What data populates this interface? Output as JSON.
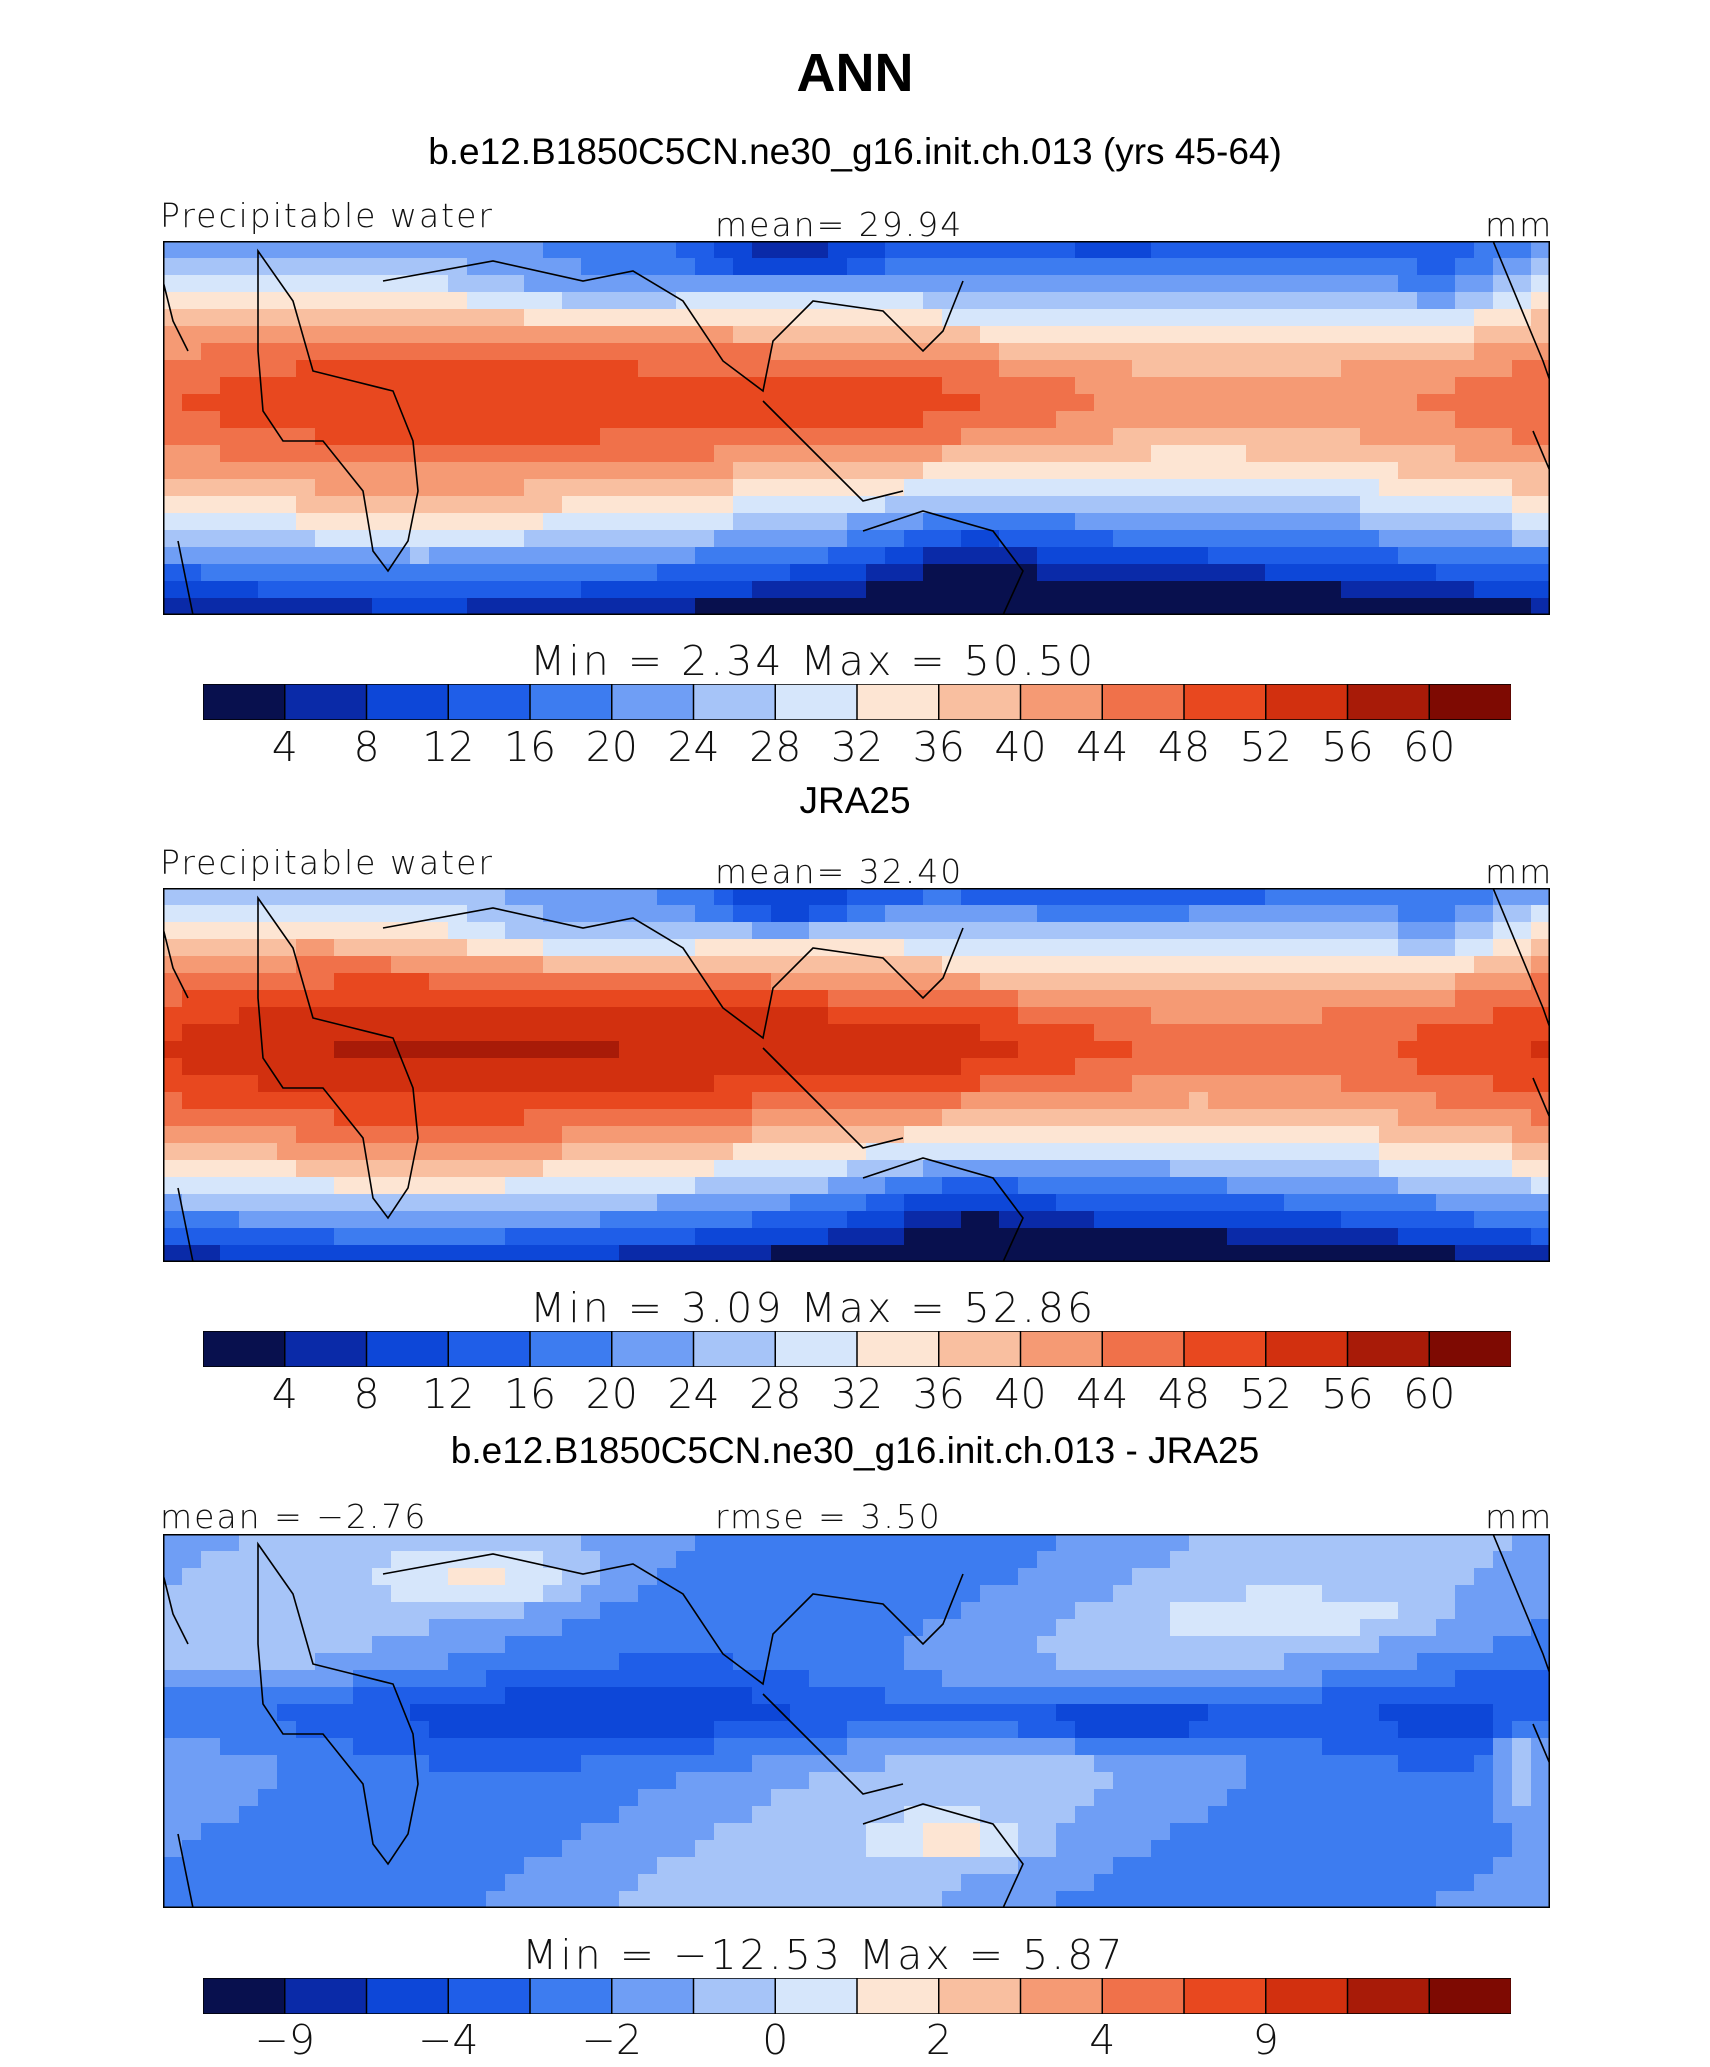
{
  "chart_data": [
    {
      "type": "heatmap",
      "title": "b.e12.B1850C5CN.ne30_g16.init.ch.013 (yrs 45-64)",
      "left_label": "Precipitable water",
      "center_label": "mean=   29.94",
      "units": "mm",
      "min_max": "Min  =     2.34  Max  =    50.50",
      "colorbar_ticks": [
        "4",
        "8",
        "12",
        "16",
        "20",
        "24",
        "28",
        "32",
        "36",
        "40",
        "44",
        "48",
        "52",
        "56",
        "60"
      ],
      "stats": {
        "mean": 29.94,
        "min": 2.34,
        "max": 50.5
      }
    },
    {
      "type": "heatmap",
      "title": "JRA25",
      "left_label": "Precipitable water",
      "center_label": "mean=   32.40",
      "units": "mm",
      "min_max": "Min  =     3.09  Max  =    52.86",
      "colorbar_ticks": [
        "4",
        "8",
        "12",
        "16",
        "20",
        "24",
        "28",
        "32",
        "36",
        "40",
        "44",
        "48",
        "52",
        "56",
        "60"
      ],
      "stats": {
        "mean": 32.4,
        "min": 3.09,
        "max": 52.86
      }
    },
    {
      "type": "heatmap",
      "title": "b.e12.B1850C5CN.ne30_g16.init.ch.013 - JRA25",
      "left_label": "mean =   −2.76",
      "center_label": "rmse =     3.50",
      "units": "mm",
      "min_max": "Min  = −12.53  Max  =     5.87",
      "colorbar_ticks": [
        "−9",
        "",
        "−4",
        "",
        "−2",
        "",
        "0",
        "",
        "2",
        "",
        "4",
        "",
        "9"
      ],
      "stats": {
        "mean": -2.76,
        "rmse": 3.5,
        "min": -12.53,
        "max": 5.87
      }
    }
  ],
  "figure_title": "ANN",
  "palette": [
    "#08104e",
    "#0a2aa8",
    "#0d47d8",
    "#1f5ee8",
    "#3d7cf0",
    "#6f9ef5",
    "#a6c4f8",
    "#d6e6fb",
    "#fde5d3",
    "#f9bfa0",
    "#f59a74",
    "#f0714a",
    "#e8481f",
    "#d2300f",
    "#a81b08",
    "#7e0a02"
  ],
  "diff_palette": [
    "#08104e",
    "#0a2aa8",
    "#0d47d8",
    "#1f5ee8",
    "#3d7cf0",
    "#6f9ef5",
    "#a6c4f8",
    "#d6e6fb",
    "#fde5d3",
    "#f9bfa0",
    "#f59a74",
    "#f0714a",
    "#e8481f",
    "#d2300f",
    "#a81b08",
    "#7e0a02"
  ]
}
